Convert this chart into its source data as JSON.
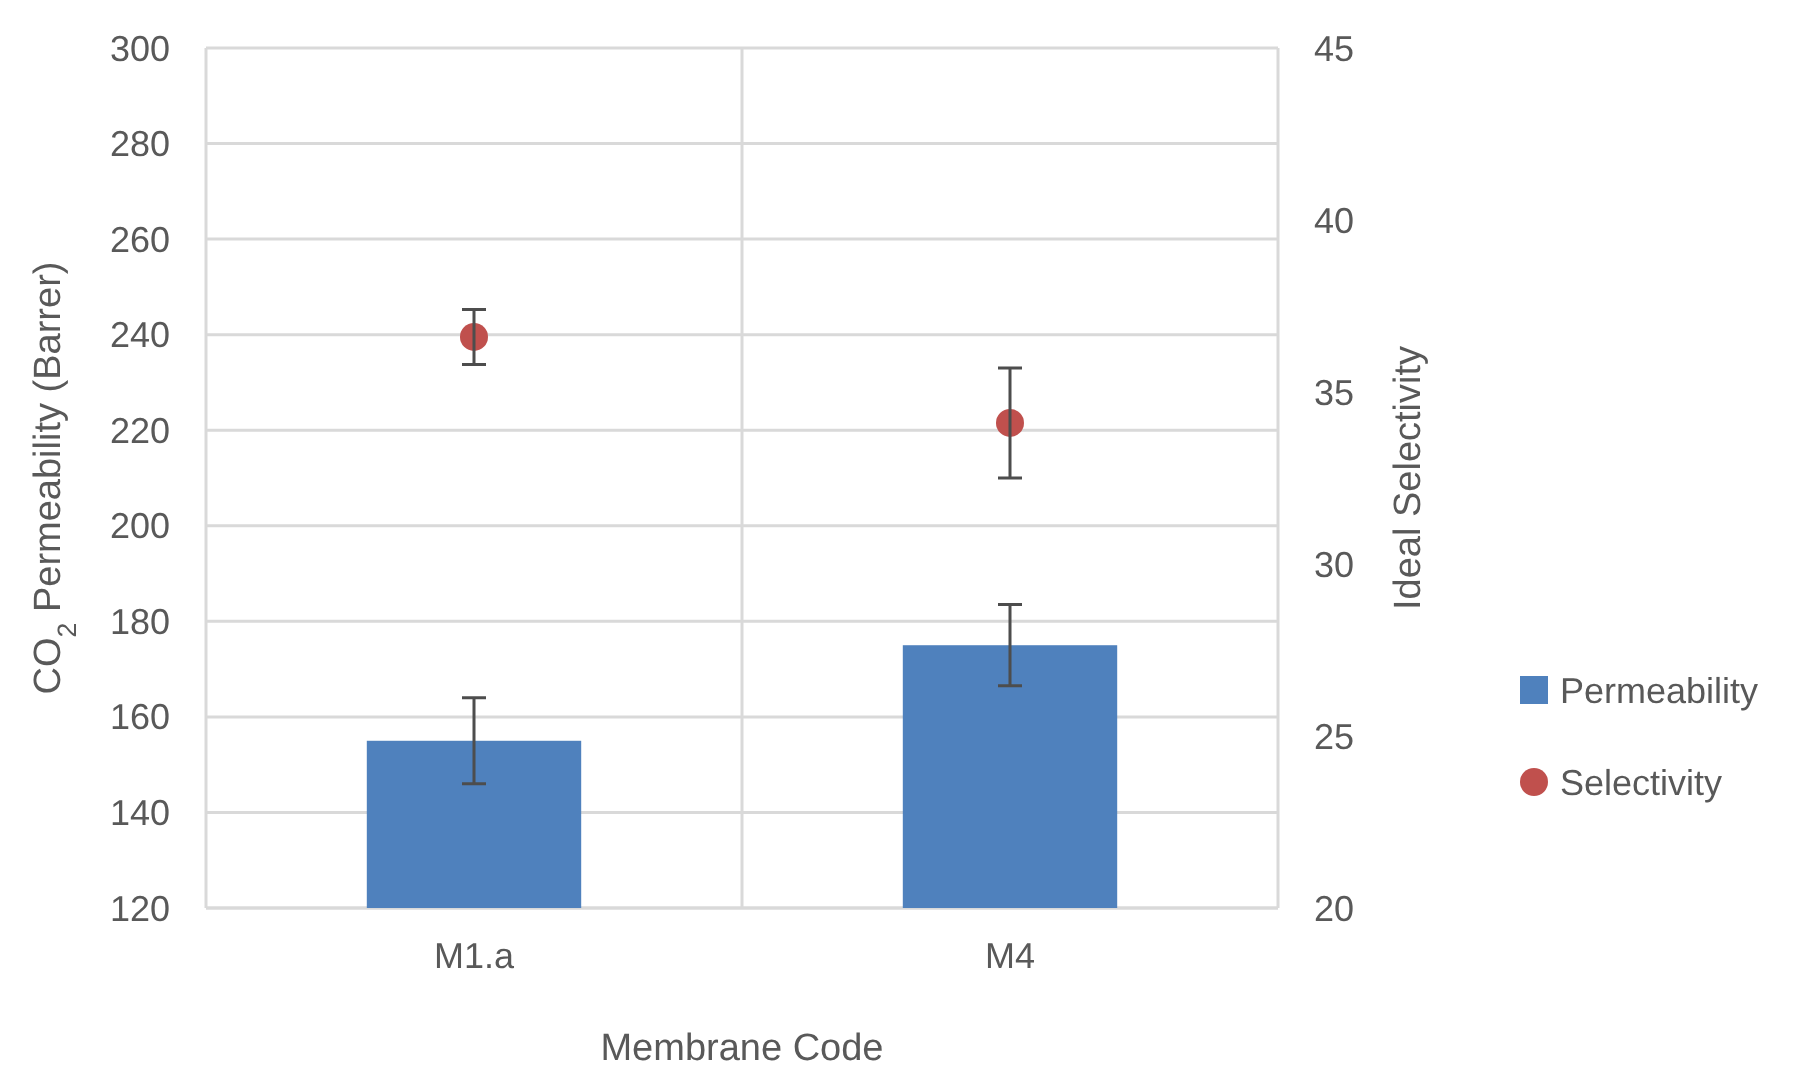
{
  "chart_data": {
    "type": "bar",
    "categories": [
      "M1.a",
      "M4"
    ],
    "xlabel": "Membrane Code",
    "ylabel": "CO$_{2}$ Permeability (Barrer)",
    "y2label": "Ideal Selectivity",
    "series": [
      {
        "name": "Permeability",
        "type": "bar",
        "color": "#4f81bd",
        "values": [
          155,
          175
        ],
        "errors": [
          9,
          8.5
        ]
      },
      {
        "name": "Selectivity",
        "type": "scatter",
        "axis": "y2",
        "color": "#c0504d",
        "values": [
          36.6,
          34.1
        ],
        "errors": [
          0.8,
          1.6
        ]
      }
    ],
    "ylim": [
      120,
      300
    ],
    "yticks": [
      120,
      140,
      160,
      180,
      200,
      220,
      240,
      260,
      280,
      300
    ],
    "y2lim": [
      20,
      45
    ],
    "y2ticks": [
      20,
      25,
      30,
      35,
      40,
      45
    ],
    "grid": true,
    "legend": "right",
    "marker": "circle"
  }
}
